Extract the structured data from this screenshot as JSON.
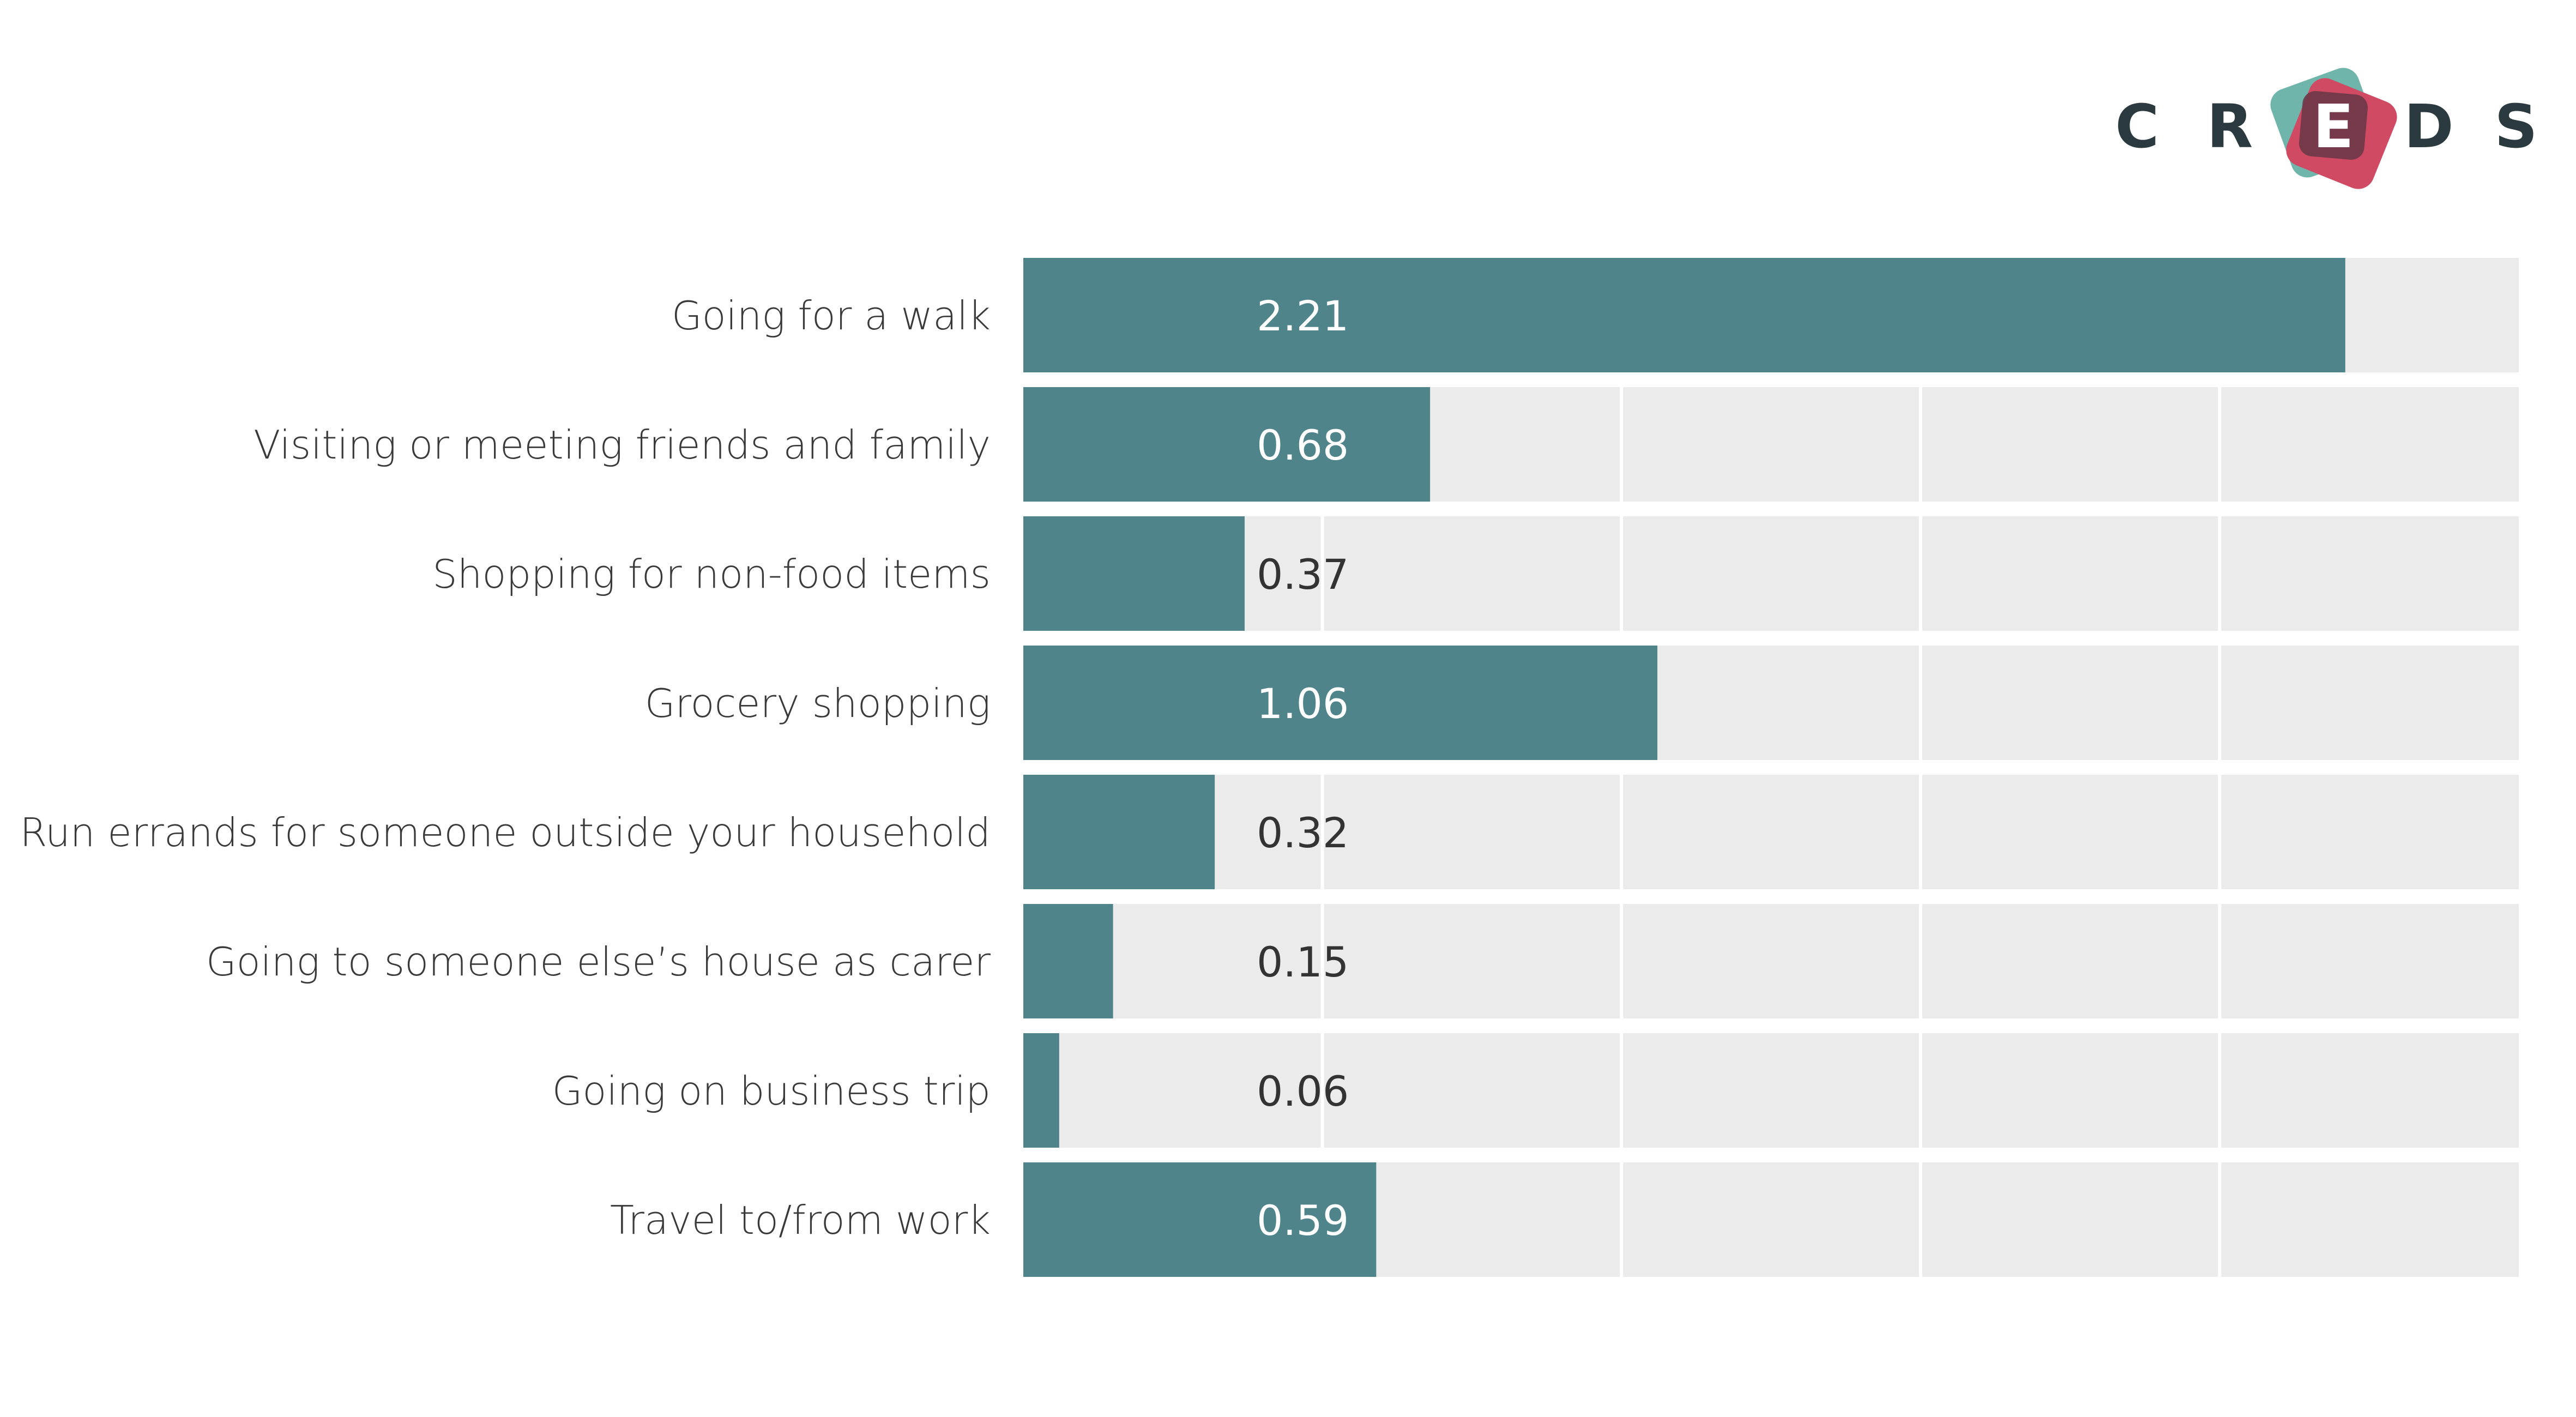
{
  "logo": {
    "letters": [
      "C",
      "R",
      "E",
      "D",
      "S"
    ],
    "colors": {
      "text": "#2b3a3f",
      "teal": "#6fb5ac",
      "red": "#d04a63",
      "plum": "#6b3848"
    }
  },
  "chart_data": {
    "type": "bar",
    "orientation": "horizontal",
    "categories": [
      "Going for a walk",
      "Visiting or meeting friends and family",
      "Shopping for non-food items",
      "Grocery shopping",
      "Run errands for someone outside your household",
      "Going to someone else’s house as carer",
      "Going on business trip",
      "Travel to/from work"
    ],
    "values": [
      2.21,
      0.68,
      0.37,
      1.06,
      0.32,
      0.15,
      0.06,
      0.59
    ],
    "value_labels": [
      "2.21",
      "0.68",
      "0.37",
      "1.06",
      "0.32",
      "0.15",
      "0.06",
      "0.59"
    ],
    "xlim": [
      0,
      2.5
    ],
    "gridlines_x": [
      0.5,
      1.0,
      1.5,
      2.0
    ],
    "grid": true,
    "title": "",
    "xlabel": "",
    "ylabel": "",
    "colors": {
      "bar": "#50848b",
      "track": "#ebebeb",
      "grid": "#ffffff",
      "label_inside": "#ffffff",
      "label_outside": "#333333"
    }
  }
}
